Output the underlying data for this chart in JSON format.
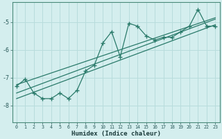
{
  "title": "",
  "xlabel": "Humidex (Indice chaleur)",
  "ylabel": "",
  "bg_color": "#d4eeee",
  "grid_color": "#b8dcdc",
  "line_color": "#2a7a6a",
  "xlim": [
    -0.5,
    23.5
  ],
  "ylim": [
    -8.6,
    -4.3
  ],
  "yticks": [
    -8,
    -7,
    -6,
    -5
  ],
  "xticks": [
    0,
    1,
    2,
    3,
    4,
    5,
    6,
    7,
    8,
    9,
    10,
    11,
    12,
    13,
    14,
    15,
    16,
    17,
    18,
    19,
    20,
    21,
    22,
    23
  ],
  "data_x": [
    0,
    1,
    2,
    3,
    4,
    5,
    6,
    7,
    8,
    9,
    10,
    11,
    12,
    13,
    14,
    15,
    16,
    17,
    18,
    19,
    20,
    21,
    22,
    23
  ],
  "data_y": [
    -7.3,
    -7.05,
    -7.55,
    -7.75,
    -7.75,
    -7.55,
    -7.75,
    -7.45,
    -6.75,
    -6.55,
    -5.75,
    -5.35,
    -6.25,
    -5.05,
    -5.15,
    -5.5,
    -5.65,
    -5.55,
    -5.55,
    -5.35,
    -5.15,
    -4.55,
    -5.15,
    -5.15
  ],
  "trend1_x": [
    0,
    23
  ],
  "trend1_y": [
    -7.55,
    -4.9
  ],
  "trend2_x": [
    0,
    23
  ],
  "trend2_y": [
    -7.25,
    -4.85
  ],
  "trend3_x": [
    0,
    23
  ],
  "trend3_y": [
    -7.75,
    -5.1
  ]
}
